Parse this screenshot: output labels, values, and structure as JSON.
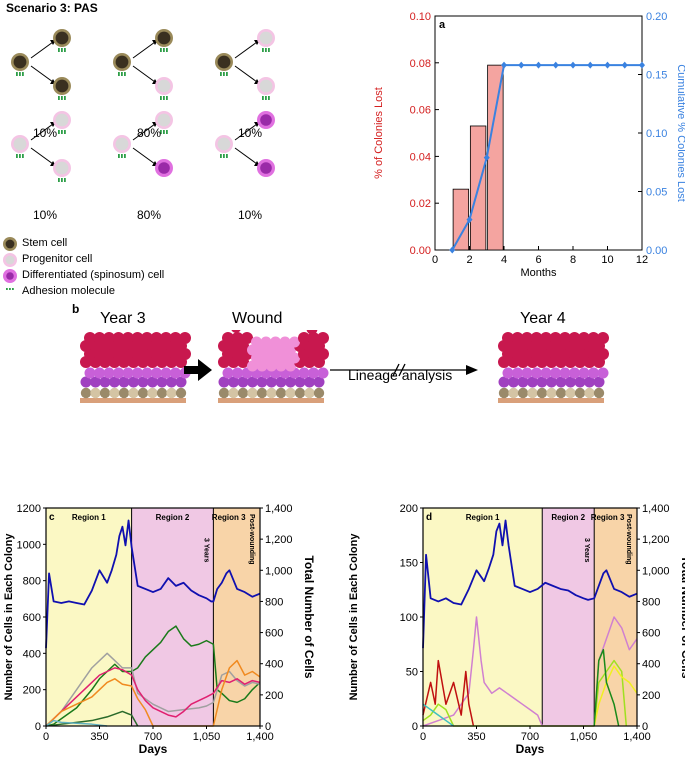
{
  "scenario": {
    "title": "Scenario 3: PAS",
    "divisions": [
      {
        "parent": "stem",
        "daughters": [
          "stem",
          "stem"
        ],
        "pct": "10%"
      },
      {
        "parent": "stem",
        "daughters": [
          "stem",
          "progenitor"
        ],
        "pct": "80%"
      },
      {
        "parent": "stem",
        "daughters": [
          "progenitor",
          "progenitor"
        ],
        "pct": "10%"
      },
      {
        "parent": "progenitor",
        "daughters": [
          "progenitor",
          "progenitor"
        ],
        "pct": "10%"
      },
      {
        "parent": "progenitor",
        "daughters": [
          "progenitor",
          "differentiated"
        ],
        "pct": "80%"
      },
      {
        "parent": "progenitor",
        "daughters": [
          "differentiated",
          "differentiated"
        ],
        "pct": "10%"
      }
    ],
    "legend": [
      {
        "type": "stem",
        "label": "Stem cell"
      },
      {
        "type": "progenitor",
        "label": "Progenitor cell"
      },
      {
        "type": "differentiated",
        "label": "Differentiated (spinosum) cell"
      },
      {
        "type": "adhesion",
        "label": "Adhesion molecule"
      }
    ],
    "colors": {
      "stem": "#3a3020",
      "stem_ring": "#9a8a5a",
      "progenitor": "#d8d8d8",
      "progenitor_ring": "#f4c4e4",
      "diff": "#9a2aa8",
      "diff_ring": "#e070e0",
      "adhesion": "#2e9e48"
    }
  },
  "panel_b": {
    "letter": "b",
    "year3": "Year 3",
    "wound": "Wound",
    "year4": "Year 4",
    "lineage": "Lineage analysis"
  },
  "chart_data": [
    {
      "id": "a",
      "type": "bar",
      "panel_label": "a",
      "categories": [
        2,
        3,
        4
      ],
      "values": [
        0.026,
        0.053,
        0.079
      ],
      "xlabel": "Months",
      "ylabel": "% of Colonies Lost",
      "y2label": "Cumulative % Colonies Lost",
      "xlim": [
        0,
        12
      ],
      "xticks": [
        "0",
        "2",
        "4",
        "6",
        "8",
        "10",
        "12"
      ],
      "ylim": [
        0,
        0.1
      ],
      "yticks": [
        "0.00",
        "0.02",
        "0.04",
        "0.06",
        "0.08",
        "0.10"
      ],
      "y2lim": [
        0,
        0.2
      ],
      "y2ticks": [
        "0.00",
        "0.05",
        "0.10",
        "0.15",
        "0.20"
      ],
      "line": {
        "x": [
          1,
          2,
          3,
          4,
          5,
          6,
          7,
          8,
          9,
          10,
          11,
          12
        ],
        "y": [
          0.0,
          0.026,
          0.079,
          0.158,
          0.158,
          0.158,
          0.158,
          0.158,
          0.158,
          0.158,
          0.158,
          0.158
        ]
      },
      "bar_color": "#f4a4a0",
      "line_color": "#3a82e0",
      "left_axis_color": "#d42020",
      "right_axis_color": "#3a82e0"
    },
    {
      "id": "c",
      "type": "line",
      "panel_label": "c",
      "xlabel": "Days",
      "ylabel": "Number of Cells in Each Colony",
      "y2label": "Total Number of Cells",
      "xlim": [
        0,
        1400
      ],
      "xticks": [
        "0",
        "350",
        "700",
        "1,050",
        "1,400"
      ],
      "ylim": [
        0,
        1200
      ],
      "yticks": [
        "0",
        "200",
        "400",
        "600",
        "800",
        "1000",
        "1200"
      ],
      "y2lim": [
        0,
        1400
      ],
      "y2ticks": [
        "0",
        "200",
        "400",
        "600",
        "800",
        "1,000",
        "1,200",
        "1,400"
      ],
      "regions": [
        {
          "label": "Region 1",
          "from": 0,
          "to": 560,
          "color": "#fbf8c4"
        },
        {
          "label": "Region 2",
          "from": 560,
          "to": 1095,
          "color": "#f0c8e4"
        },
        {
          "label": "Region 3",
          "from": 1095,
          "to": 1400,
          "color": "#f8d4a8"
        }
      ],
      "annot_3y": "3 Years",
      "annot_post": "Post-wounding",
      "series": [
        {
          "name": "total",
          "color": "#1010b0",
          "x": [
            0,
            20,
            50,
            100,
            150,
            200,
            250,
            300,
            350,
            400,
            430,
            460,
            480,
            500,
            520,
            540,
            560,
            600,
            650,
            700,
            750,
            800,
            850,
            900,
            950,
            1000,
            1050,
            1080,
            1095,
            1120,
            1150,
            1180,
            1200,
            1250,
            1300,
            1350,
            1400
          ],
          "y": [
            500,
            980,
            800,
            790,
            800,
            790,
            780,
            870,
            1000,
            920,
            1000,
            1100,
            1220,
            1280,
            1160,
            1320,
            1150,
            900,
            880,
            860,
            880,
            950,
            900,
            920,
            870,
            840,
            820,
            800,
            800,
            880,
            920,
            980,
            1000,
            880,
            860,
            830,
            850
          ]
        },
        {
          "name": "green",
          "color": "#1a7a1a",
          "x": [
            0,
            50,
            100,
            200,
            300,
            350,
            400,
            450,
            500,
            560,
            600,
            650,
            700,
            750,
            800,
            850,
            900,
            950,
            1000,
            1050,
            1095,
            1120,
            1150,
            1200,
            1250,
            1300,
            1350,
            1400
          ],
          "y": [
            0,
            10,
            40,
            100,
            200,
            260,
            300,
            340,
            300,
            300,
            320,
            380,
            420,
            460,
            520,
            550,
            480,
            440,
            450,
            470,
            450,
            200,
            180,
            140,
            130,
            150,
            200,
            240
          ]
        },
        {
          "name": "gray",
          "color": "#a0a0a0",
          "x": [
            0,
            100,
            200,
            300,
            400,
            450,
            500,
            560,
            600,
            700,
            800,
            900,
            1000,
            1050,
            1095,
            1150,
            1200,
            1250,
            1300,
            1350,
            1400
          ],
          "y": [
            0,
            80,
            200,
            320,
            400,
            360,
            320,
            320,
            180,
            120,
            80,
            90,
            100,
            110,
            130,
            280,
            300,
            250,
            220,
            240,
            230
          ]
        },
        {
          "name": "pink",
          "color": "#e02070",
          "x": [
            0,
            100,
            200,
            300,
            350,
            400,
            450,
            500,
            560,
            600,
            650,
            700,
            750,
            800,
            850,
            900,
            950,
            1000,
            1050,
            1095,
            1150,
            1200,
            1250,
            1300,
            1350,
            1400
          ],
          "y": [
            0,
            80,
            160,
            240,
            280,
            300,
            320,
            310,
            280,
            200,
            140,
            100,
            80,
            60,
            50,
            80,
            120,
            140,
            160,
            180,
            250,
            240,
            260,
            230,
            250,
            240
          ]
        },
        {
          "name": "orange",
          "color": "#f08a20",
          "x": [
            0,
            100,
            200,
            300,
            350,
            400,
            450,
            500,
            560,
            600,
            650,
            700,
            1095,
            1150,
            1200,
            1250,
            1300,
            1350,
            1400
          ],
          "y": [
            0,
            80,
            120,
            160,
            200,
            240,
            260,
            230,
            220,
            150,
            90,
            0,
            0,
            200,
            320,
            360,
            280,
            300,
            270
          ]
        },
        {
          "name": "dgreen",
          "color": "#2a6a2a",
          "x": [
            0,
            100,
            200,
            300,
            400,
            500,
            560,
            600
          ],
          "y": [
            0,
            10,
            20,
            30,
            50,
            80,
            60,
            0
          ]
        },
        {
          "name": "cyan",
          "color": "#60b0c0",
          "x": [
            0,
            50,
            100,
            200,
            300,
            400
          ],
          "y": [
            0,
            30,
            20,
            15,
            10,
            0
          ]
        }
      ]
    },
    {
      "id": "d",
      "type": "line",
      "panel_label": "d",
      "xlabel": "Days",
      "ylabel": "Number of Cells in Each Colony",
      "y2label": "Total Number of Cells",
      "xlim": [
        0,
        1400
      ],
      "xticks": [
        "0",
        "350",
        "700",
        "1,050",
        "1,400"
      ],
      "ylim": [
        0,
        200
      ],
      "yticks": [
        "0",
        "50",
        "100",
        "150",
        "200"
      ],
      "y2lim": [
        0,
        1400
      ],
      "y2ticks": [
        "0",
        "200",
        "400",
        "600",
        "800",
        "1,000",
        "1,200",
        "1,400"
      ],
      "regions": [
        {
          "label": "Region 1",
          "from": 0,
          "to": 780,
          "color": "#fbf8c4"
        },
        {
          "label": "Region 2",
          "from": 780,
          "to": 1120,
          "color": "#f0c8e4"
        },
        {
          "label": "Region 3",
          "from": 1120,
          "to": 1400,
          "color": "#f8d4a8"
        }
      ],
      "annot_3y": "3 Years",
      "annot_post": "Post-wounding",
      "series": [
        {
          "name": "total",
          "color": "#1010b0",
          "x": [
            0,
            20,
            50,
            100,
            150,
            200,
            250,
            300,
            350,
            400,
            430,
            460,
            480,
            500,
            520,
            540,
            560,
            600,
            650,
            700,
            750,
            800,
            850,
            900,
            950,
            1000,
            1050,
            1080,
            1120,
            1150,
            1180,
            1200,
            1250,
            1300,
            1350,
            1400
          ],
          "y": [
            500,
            1100,
            820,
            800,
            820,
            790,
            780,
            880,
            1000,
            930,
            1010,
            1100,
            1250,
            1300,
            1160,
            1320,
            1160,
            900,
            880,
            860,
            880,
            920,
            900,
            880,
            870,
            840,
            820,
            810,
            820,
            900,
            980,
            1000,
            880,
            860,
            830,
            850
          ]
        },
        {
          "name": "violet",
          "color": "#d080d0",
          "x": [
            0,
            100,
            200,
            300,
            330,
            350,
            380,
            400,
            450,
            500,
            550,
            600,
            650,
            700,
            750,
            780,
            1120,
            1150,
            1200,
            1250,
            1300,
            1350,
            1400
          ],
          "y": [
            0,
            5,
            10,
            30,
            70,
            100,
            60,
            40,
            30,
            35,
            30,
            25,
            20,
            15,
            10,
            0,
            0,
            60,
            80,
            100,
            90,
            70,
            80
          ]
        },
        {
          "name": "red",
          "color": "#c01010",
          "x": [
            0,
            50,
            80,
            100,
            150,
            200,
            250,
            280,
            300,
            330
          ],
          "y": [
            10,
            40,
            20,
            60,
            20,
            40,
            10,
            50,
            20,
            0
          ]
        },
        {
          "name": "lime",
          "color": "#a0e020",
          "x": [
            0,
            50,
            100,
            150,
            200,
            1120,
            1150,
            1200,
            1250,
            1300,
            1330
          ],
          "y": [
            5,
            10,
            20,
            15,
            0,
            0,
            40,
            50,
            60,
            50,
            0
          ]
        },
        {
          "name": "yellow",
          "color": "#f0f020",
          "x": [
            1120,
            1150,
            1200,
            1250,
            1300,
            1350,
            1400
          ],
          "y": [
            0,
            20,
            40,
            55,
            45,
            40,
            30
          ]
        },
        {
          "name": "green",
          "color": "#1a8a1a",
          "x": [
            1120,
            1150,
            1180,
            1200,
            1250,
            1280
          ],
          "y": [
            0,
            60,
            70,
            40,
            20,
            0
          ]
        },
        {
          "name": "teal",
          "color": "#40c0c0",
          "x": [
            0,
            50,
            100,
            150,
            200
          ],
          "y": [
            20,
            15,
            10,
            5,
            0
          ]
        }
      ]
    }
  ]
}
